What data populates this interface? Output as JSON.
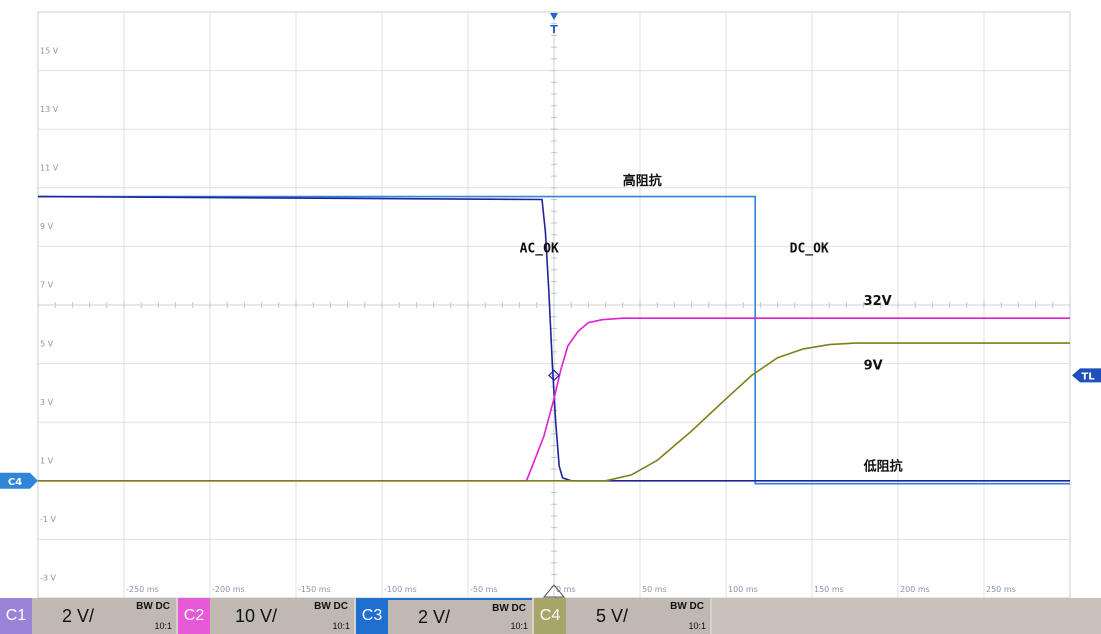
{
  "chart_data": {
    "type": "line",
    "x_unit": "ms",
    "y_unit": "V",
    "xlim": [
      -300,
      300
    ],
    "ylim": [
      -4,
      16
    ],
    "x_ticks": [
      {
        "value": -250,
        "label": "-250 ms"
      },
      {
        "value": -200,
        "label": "-200 ms"
      },
      {
        "value": -150,
        "label": "-150 ms"
      },
      {
        "value": -100,
        "label": "-100 ms"
      },
      {
        "value": -50,
        "label": "-50 ms"
      },
      {
        "value": 0,
        "label": "0 ms"
      },
      {
        "value": 50,
        "label": "50 ms"
      },
      {
        "value": 100,
        "label": "100 ms"
      },
      {
        "value": 150,
        "label": "150 ms"
      },
      {
        "value": 200,
        "label": "200 ms"
      },
      {
        "value": 250,
        "label": "250 ms"
      }
    ],
    "y_ticks": [
      {
        "value": 15,
        "label": "15 V"
      },
      {
        "value": 13,
        "label": "13 V"
      },
      {
        "value": 11,
        "label": "11 V"
      },
      {
        "value": 9,
        "label": "9 V"
      },
      {
        "value": 7,
        "label": "7 V"
      },
      {
        "value": 5,
        "label": "5 V"
      },
      {
        "value": 3,
        "label": "3 V"
      },
      {
        "value": 1,
        "label": "1 V"
      },
      {
        "value": -1,
        "label": "-1 V"
      },
      {
        "value": -3,
        "label": "-3 V"
      }
    ],
    "grid": true,
    "series": [
      {
        "name": "C1",
        "color": "#2f86d8",
        "x": [
          -300,
          117,
          117,
          300
        ],
        "y": [
          9.7,
          9.7,
          -0.1,
          -0.1
        ]
      },
      {
        "name": "C3",
        "color": "#22229a",
        "x": [
          -300,
          -7,
          -5,
          -3,
          -1,
          0,
          1,
          3,
          5,
          10,
          300
        ],
        "y": [
          9.7,
          9.6,
          8.5,
          6.5,
          4.0,
          3.0,
          2.0,
          0.5,
          0.1,
          0.0,
          0.0
        ]
      },
      {
        "name": "C2",
        "color": "#e020d0",
        "x": [
          -300,
          -16,
          -12,
          -6,
          0,
          4,
          8,
          14,
          20,
          28,
          40,
          60,
          300
        ],
        "y": [
          0.0,
          0.0,
          0.6,
          1.5,
          2.8,
          3.8,
          4.6,
          5.1,
          5.4,
          5.5,
          5.55,
          5.55,
          5.55
        ]
      },
      {
        "name": "C4",
        "color": "#7f7f1a",
        "x": [
          -300,
          30,
          45,
          60,
          80,
          100,
          115,
          130,
          145,
          160,
          175,
          300
        ],
        "y": [
          0.0,
          0.0,
          0.2,
          0.7,
          1.7,
          2.8,
          3.6,
          4.2,
          4.5,
          4.65,
          4.7,
          4.7
        ]
      }
    ],
    "annotations": [
      {
        "text": "高阻抗",
        "x": 40,
        "y": 10.1
      },
      {
        "text": "AC_OK",
        "x": -20,
        "y": 7.8
      },
      {
        "text": "DC_OK",
        "x": 137,
        "y": 7.8
      },
      {
        "text": "32V",
        "x": 180,
        "y": 6.0
      },
      {
        "text": "9V",
        "x": 180,
        "y": 3.8
      },
      {
        "text": "低阻抗",
        "x": 180,
        "y": 0.35
      }
    ],
    "markers": {
      "trigger_top": "T",
      "trigger_level": "TL",
      "ground_ref": "C4"
    }
  },
  "channels": [
    {
      "id": "C1",
      "scale": "2 V/",
      "bw": "BW DC",
      "probe": "10:1",
      "color": "#9a84d8"
    },
    {
      "id": "C2",
      "scale": "10 V/",
      "bw": "BW DC",
      "probe": "10:1",
      "color": "#e65ad8"
    },
    {
      "id": "C3",
      "scale": "2 V/",
      "bw": "BW DC",
      "probe": "10:1",
      "color": "#1f6fd0"
    },
    {
      "id": "C4",
      "scale": "5 V/",
      "bw": "BW DC",
      "probe": "10:1",
      "color": "#a8a56a"
    }
  ]
}
